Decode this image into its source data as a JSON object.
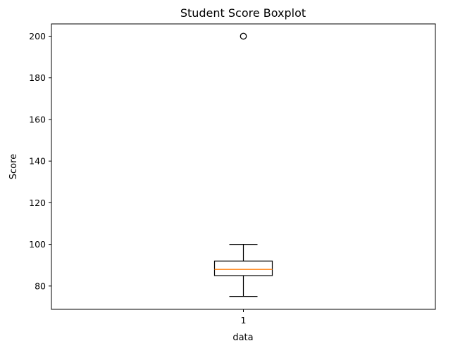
{
  "chart_data": {
    "type": "boxplot",
    "title": "Student Score Boxplot",
    "xlabel": "data",
    "ylabel": "Score",
    "categories": [
      "1"
    ],
    "ylim": [
      68.8,
      205.9
    ],
    "yticks": [
      80,
      100,
      120,
      140,
      160,
      180,
      200
    ],
    "series": [
      {
        "category": "1",
        "whisker_low": 75,
        "q1": 85,
        "median": 88,
        "q3": 92,
        "whisker_high": 100,
        "outliers": [
          200
        ]
      }
    ],
    "grid": false,
    "colors": {
      "box": "#000000",
      "median": "#ff7f0e",
      "whisker": "#000000",
      "outlier": "#000000",
      "axes": "#000000"
    }
  }
}
